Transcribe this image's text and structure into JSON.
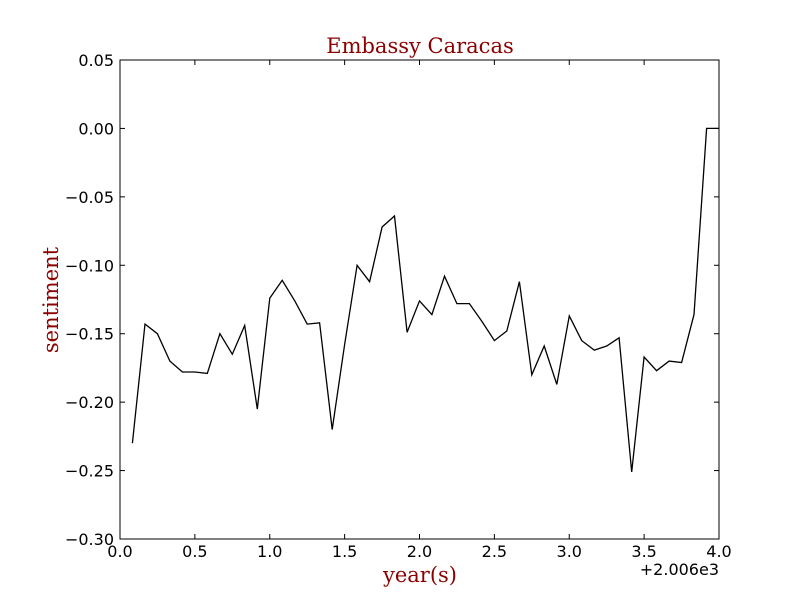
{
  "chart_data": {
    "type": "line",
    "title": "Embassy Caracas",
    "xlabel": "year(s)",
    "ylabel": "sentiment",
    "x_offset_label": "+2.006e3",
    "xlim": [
      0.0,
      4.0
    ],
    "ylim": [
      -0.3,
      0.05
    ],
    "x_ticks": [
      "0.0",
      "0.5",
      "1.0",
      "1.5",
      "2.0",
      "2.5",
      "3.0",
      "3.5",
      "4.0"
    ],
    "y_ticks": [
      "0.05",
      "0.00",
      "−0.05",
      "−0.10",
      "−0.15",
      "−0.20",
      "−0.25",
      "−0.30"
    ],
    "grid": false,
    "colors": {
      "line": "#000000",
      "title": "#8b0000",
      "axis_label": "#8b0000"
    },
    "series": [
      {
        "x": [
          0.083,
          0.167,
          0.25,
          0.333,
          0.417,
          0.5,
          0.583,
          0.667,
          0.75,
          0.833,
          0.917,
          1.0,
          1.083,
          1.167,
          1.25,
          1.333,
          1.417,
          1.5,
          1.583,
          1.667,
          1.75,
          1.833,
          1.917,
          2.0,
          2.083,
          2.167,
          2.25,
          2.333,
          2.417,
          2.5,
          2.583,
          2.667,
          2.75,
          2.833,
          2.917,
          3.0,
          3.083,
          3.167,
          3.25,
          3.333,
          3.417,
          3.5,
          3.583,
          3.667,
          3.75,
          3.833,
          3.917,
          4.0
        ],
        "y": [
          -0.23,
          -0.143,
          -0.15,
          -0.17,
          -0.178,
          -0.178,
          -0.179,
          -0.15,
          -0.165,
          -0.144,
          -0.205,
          -0.124,
          -0.111,
          -0.126,
          -0.143,
          -0.142,
          -0.22,
          -0.158,
          -0.1,
          -0.112,
          -0.072,
          -0.064,
          -0.149,
          -0.126,
          -0.136,
          -0.108,
          -0.128,
          -0.128,
          -0.141,
          -0.155,
          -0.148,
          -0.112,
          -0.18,
          -0.159,
          -0.187,
          -0.137,
          -0.155,
          -0.162,
          -0.159,
          -0.153,
          -0.251,
          -0.167,
          -0.177,
          -0.17,
          -0.171,
          -0.136,
          0.0,
          0.0
        ]
      }
    ]
  }
}
